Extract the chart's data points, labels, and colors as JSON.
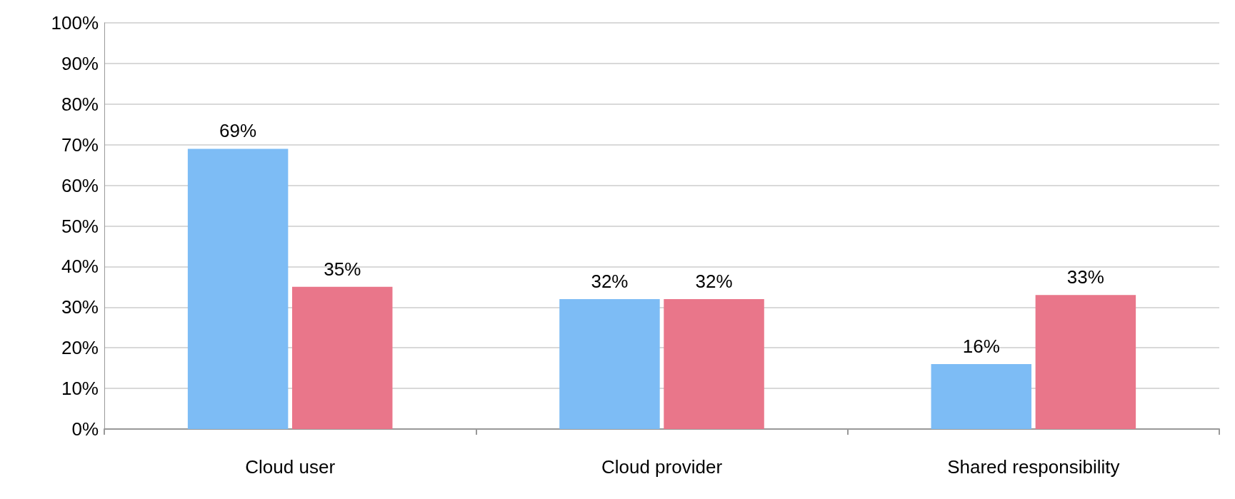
{
  "chart_data": {
    "type": "bar",
    "categories": [
      "Cloud user",
      "Cloud provider",
      "Shared responsibility"
    ],
    "series": [
      {
        "color": "#7dbcf5",
        "values": [
          69,
          32,
          16
        ],
        "value_labels": [
          "69%",
          "32%",
          "16%"
        ]
      },
      {
        "color": "#e9768a",
        "values": [
          35,
          32,
          33
        ],
        "value_labels": [
          "35%",
          "32%",
          "33%"
        ]
      }
    ],
    "ylim": [
      0,
      100
    ],
    "yticks": [
      {
        "value": 0,
        "label": "0%"
      },
      {
        "value": 10,
        "label": "10%"
      },
      {
        "value": 20,
        "label": "20%"
      },
      {
        "value": 30,
        "label": "30%"
      },
      {
        "value": 40,
        "label": "40%"
      },
      {
        "value": 50,
        "label": "50%"
      },
      {
        "value": 60,
        "label": "60%"
      },
      {
        "value": 70,
        "label": "70%"
      },
      {
        "value": 80,
        "label": "80%"
      },
      {
        "value": 90,
        "label": "90%"
      },
      {
        "value": 100,
        "label": "100%"
      }
    ],
    "grid": "y"
  }
}
